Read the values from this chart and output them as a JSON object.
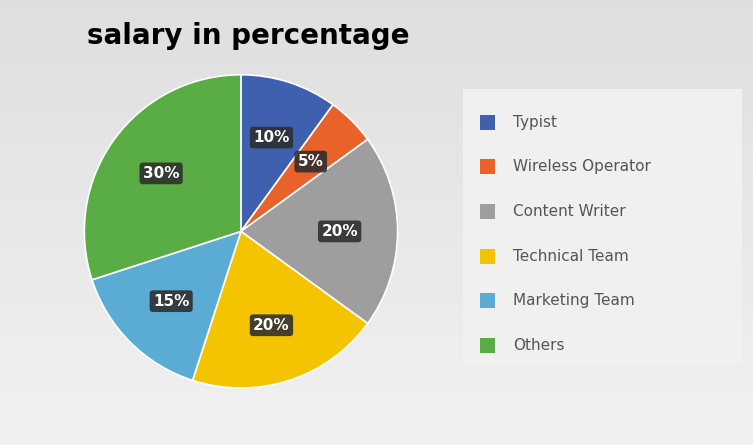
{
  "title": "salary in percentage",
  "labels": [
    "Typist",
    "Wireless Operator",
    "Content Writer",
    "Technical Team",
    "Marketing Team",
    "Others"
  ],
  "values": [
    10,
    5,
    20,
    20,
    15,
    30
  ],
  "colors": [
    "#3f5faf",
    "#e8622a",
    "#9e9e9e",
    "#f5c400",
    "#5bacd4",
    "#5aad45"
  ],
  "pct_labels": [
    "10%",
    "5%",
    "20%",
    "20%",
    "15%",
    "30%"
  ],
  "title_fontsize": 20,
  "legend_fontsize": 11,
  "legend_text_color": "#555555",
  "label_box_color": "#2d2d2d",
  "label_text_color": "white",
  "label_fontsize": 11,
  "bg_light": "#e8e8e8",
  "bg_dark": "#b0b0b0",
  "legend_box_color": "#f0f0f0"
}
